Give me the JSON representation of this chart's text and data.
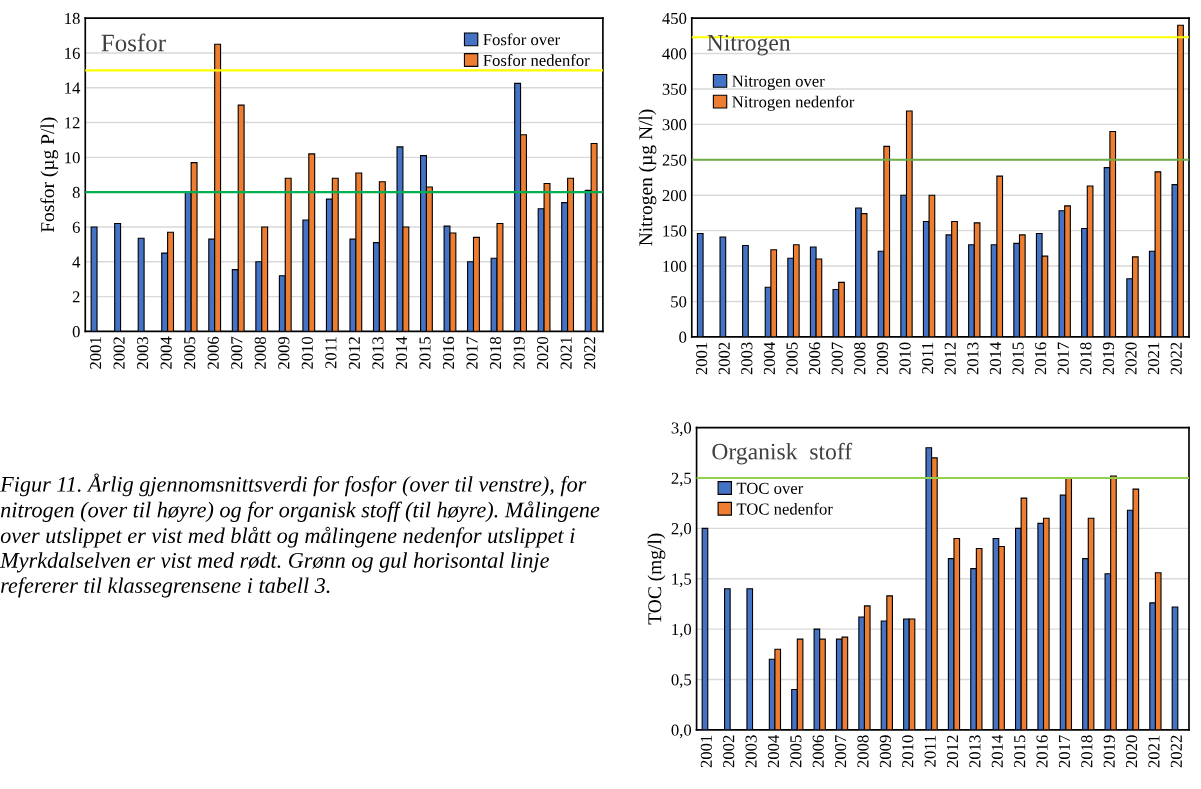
{
  "chart_data": [
    {
      "type": "bar",
      "title": "Fosfor",
      "ylabel": "Fosfor (µg P/l)",
      "categories": [
        "2001",
        "2002",
        "2003",
        "2004",
        "2005",
        "2006",
        "2007",
        "2008",
        "2009",
        "2010",
        "2011",
        "2012",
        "2013",
        "2014",
        "2015",
        "2016",
        "2017",
        "2018",
        "2019",
        "2020",
        "2021",
        "2022"
      ],
      "series": [
        {
          "name": "Fosfor over",
          "color": "#4472c4",
          "values": [
            6.0,
            6.2,
            5.35,
            4.5,
            8.0,
            5.3,
            3.55,
            4.0,
            3.2,
            6.4,
            7.6,
            5.3,
            5.1,
            10.6,
            10.1,
            6.05,
            4.0,
            4.2,
            14.25,
            7.05,
            7.4,
            8.1
          ]
        },
        {
          "name": "Fosfor nedenfor",
          "color": "#ed7d31",
          "values": [
            null,
            null,
            null,
            5.7,
            9.7,
            16.5,
            13.0,
            6.0,
            8.8,
            10.2,
            8.8,
            9.1,
            8.6,
            6.0,
            8.3,
            5.65,
            5.4,
            6.2,
            11.3,
            8.5,
            8.8,
            10.8
          ]
        }
      ],
      "ylim": [
        0,
        18
      ],
      "yticks": [
        0,
        2,
        4,
        6,
        8,
        10,
        12,
        14,
        16,
        18
      ],
      "grid": "y",
      "legend": "top right",
      "ref_lines": [
        {
          "axis": "y",
          "value": 15,
          "color": "#ffff00"
        },
        {
          "axis": "y",
          "value": 8,
          "color": "#00b050"
        }
      ],
      "annotations": [
        "Figur 11. Årlig gjennomsnittsverdi for fosfor (over til venstre), for nitrogen (over til høyre) og for organisk stoff (til høyre). Målingene over utslippet er vist med blått og målingene nedenfor utslippet i Myrkdalselven er vist med rødt. Grønn og gul horisontal linje refererer til klassegrensene i tabell 3."
      ]
    },
    {
      "type": "bar",
      "title": "Nitrogen",
      "ylabel": "Nitrogen (µg N/l)",
      "categories": [
        "2001",
        "2002",
        "2003",
        "2004",
        "2005",
        "2006",
        "2007",
        "2008",
        "2009",
        "2010",
        "2011",
        "2012",
        "2013",
        "2014",
        "2015",
        "2016",
        "2017",
        "2018",
        "2019",
        "2020",
        "2021",
        "2022"
      ],
      "series": [
        {
          "name": "Nitrogen over",
          "color": "#4472c4",
          "values": [
            146,
            141,
            129,
            70,
            111,
            127,
            67,
            182,
            121,
            200,
            163,
            144,
            130,
            130,
            132,
            146,
            178,
            153,
            239,
            82,
            121,
            215
          ]
        },
        {
          "name": "Nitrogen nedenfor",
          "color": "#ed7d31",
          "values": [
            null,
            null,
            null,
            123,
            130,
            110,
            77,
            174,
            269,
            319,
            200,
            163,
            161,
            227,
            144,
            114,
            185,
            213,
            290,
            113,
            233,
            440
          ]
        }
      ],
      "ylim": [
        0,
        450
      ],
      "yticks": [
        0,
        50,
        100,
        150,
        200,
        250,
        300,
        350,
        400,
        450
      ],
      "grid": "y",
      "legend": "top left",
      "ref_lines": [
        {
          "axis": "y",
          "value": 423,
          "color": "#ffff00"
        },
        {
          "axis": "y",
          "value": 250,
          "color": "#70ad47"
        }
      ]
    },
    {
      "type": "bar",
      "title": "Organisk  stoff",
      "ylabel": "TOC (mg/l)",
      "categories": [
        "2001",
        "2002",
        "2003",
        "2004",
        "2005",
        "2006",
        "2007",
        "2008",
        "2009",
        "2010",
        "2011",
        "2012",
        "2013",
        "2014",
        "2015",
        "2016",
        "2017",
        "2018",
        "2019",
        "2020",
        "2021",
        "2022"
      ],
      "series": [
        {
          "name": "TOC over",
          "color": "#4472c4",
          "values": [
            2.0,
            1.4,
            1.4,
            0.7,
            0.4,
            1.0,
            0.9,
            1.12,
            1.08,
            1.1,
            2.8,
            1.7,
            1.6,
            1.9,
            2.0,
            2.05,
            2.33,
            1.7,
            1.55,
            2.18,
            1.26,
            1.22
          ]
        },
        {
          "name": "TOC nedenfor",
          "color": "#ed7d31",
          "values": [
            null,
            null,
            null,
            0.8,
            0.9,
            0.9,
            0.92,
            1.23,
            1.33,
            1.1,
            2.7,
            1.9,
            1.8,
            1.82,
            2.3,
            2.1,
            2.5,
            2.1,
            2.52,
            2.39,
            1.56,
            null
          ]
        }
      ],
      "ylim": [
        0,
        3
      ],
      "yticks": [
        {
          "value": 0,
          "label": "0,0"
        },
        {
          "value": 0.5,
          "label": "0,5"
        },
        {
          "value": 1,
          "label": "1,0"
        },
        {
          "value": 1.5,
          "label": "1,5"
        },
        {
          "value": 2,
          "label": "2,0"
        },
        {
          "value": 2.5,
          "label": "2,5"
        },
        {
          "value": 3,
          "label": "3,0"
        }
      ],
      "grid": "y",
      "legend": "top left",
      "ref_lines": [
        {
          "axis": "y",
          "value": 2.5,
          "color": "#92d050"
        }
      ]
    }
  ]
}
